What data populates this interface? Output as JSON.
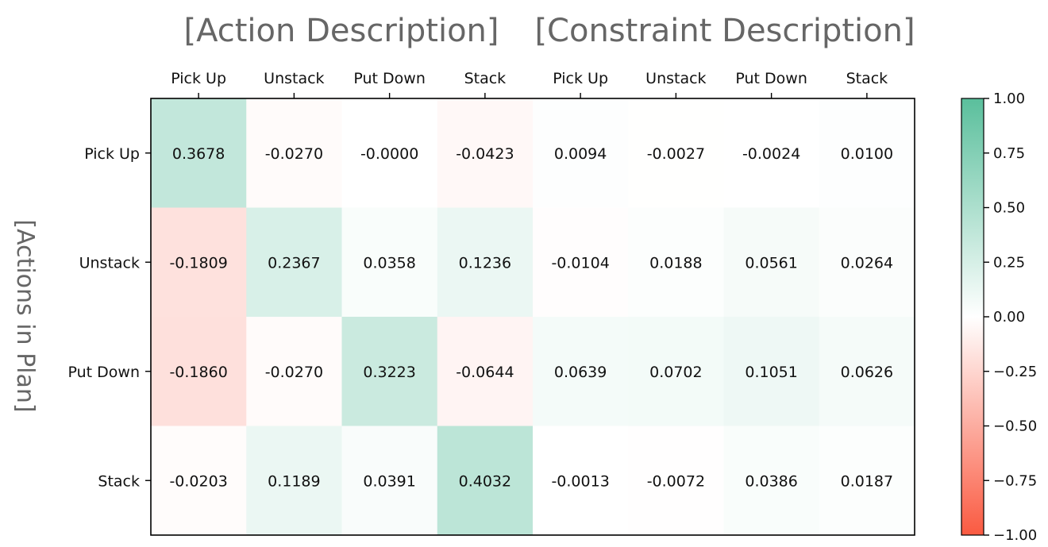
{
  "chart_data": {
    "type": "heatmap",
    "group_titles": [
      "[Action Description]",
      "[Constraint Description]"
    ],
    "ylabel": "[Actions in Plan]",
    "x_tick_labels": [
      "Pick Up",
      "Unstack",
      "Put Down",
      "Stack",
      "Pick Up",
      "Unstack",
      "Put Down",
      "Stack"
    ],
    "y_tick_labels": [
      "Pick Up",
      "Unstack",
      "Put Down",
      "Stack"
    ],
    "values": [
      [
        0.3678,
        -0.027,
        -0.0,
        -0.0423,
        0.0094,
        -0.0027,
        -0.0024,
        0.01
      ],
      [
        -0.1809,
        0.2367,
        0.0358,
        0.1236,
        -0.0104,
        0.0188,
        0.0561,
        0.0264
      ],
      [
        -0.186,
        -0.027,
        0.3223,
        -0.0644,
        0.0639,
        0.0702,
        0.1051,
        0.0626
      ],
      [
        -0.0203,
        0.1189,
        0.0391,
        0.4032,
        -0.0013,
        -0.0072,
        0.0386,
        0.0187
      ]
    ],
    "cell_text": [
      [
        "0.3678",
        "-0.0270",
        "-0.0000",
        "-0.0423",
        "0.0094",
        "-0.0027",
        "-0.0024",
        "0.0100"
      ],
      [
        "-0.1809",
        "0.2367",
        "0.0358",
        "0.1236",
        "-0.0104",
        "0.0188",
        "0.0561",
        "0.0264"
      ],
      [
        "-0.1860",
        "-0.0270",
        "0.3223",
        "-0.0644",
        "0.0639",
        "0.0702",
        "0.1051",
        "0.0626"
      ],
      [
        "-0.0203",
        "0.1189",
        "0.0391",
        "0.4032",
        "-0.0013",
        "-0.0072",
        "0.0386",
        "0.0187"
      ]
    ],
    "colorbar": {
      "range": [
        -1.0,
        1.0
      ],
      "ticks": [
        "1.00",
        "0.75",
        "0.50",
        "0.25",
        "0.00",
        "−0.25",
        "−0.50",
        "−0.75",
        "−1.00"
      ],
      "tick_values": [
        1.0,
        0.75,
        0.5,
        0.25,
        0.0,
        -0.25,
        -0.5,
        -0.75,
        -1.0
      ],
      "color_min": "#fa5a41",
      "color_mid": "#ffffff",
      "color_max": "#5abf9c"
    }
  }
}
